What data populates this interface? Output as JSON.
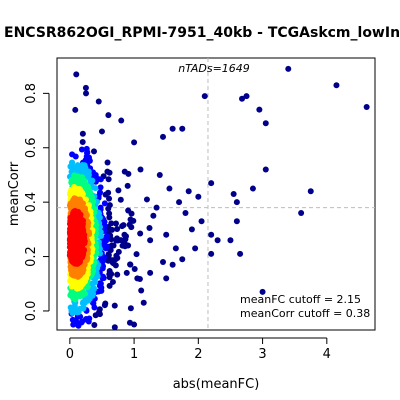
{
  "chart_data": {
    "type": "scatter",
    "title": "ENCSR862OGI_RPMI-7951_40kb - TCGAskcm_lowInf_high",
    "xlabel": "abs(meanFC)",
    "ylabel": "meanCorr",
    "xlim": [
      -0.2,
      4.75
    ],
    "ylim": [
      -0.07,
      0.93
    ],
    "xticks": [
      0,
      1,
      2,
      3,
      4
    ],
    "yticks": [
      0.0,
      0.2,
      0.4,
      0.6,
      0.8
    ],
    "grid": false,
    "n_annotation": "nTADs=1649",
    "cutoff_annotation": {
      "meanFC_text": "meanFC cutoff = 2.15",
      "meanCorr_text": "meanCorr cutoff = 0.38"
    },
    "cutoffs": {
      "meanFC": 2.15,
      "meanCorr": 0.38
    },
    "cutoff_line_color": "#bdbdbd",
    "point_color_sparse": "#00008b",
    "density_colormap": [
      "#00008b",
      "#0000ff",
      "#00bfff",
      "#00ff80",
      "#ffff00",
      "#ff8000",
      "#ff0000"
    ],
    "outlier_points": [
      {
        "x": 4.62,
        "y": 0.75
      },
      {
        "x": 4.15,
        "y": 0.83
      },
      {
        "x": 3.4,
        "y": 0.89
      },
      {
        "x": 3.75,
        "y": 0.44
      },
      {
        "x": 3.6,
        "y": 0.36
      },
      {
        "x": 3.05,
        "y": 0.52
      },
      {
        "x": 3.0,
        "y": 0.07
      },
      {
        "x": 3.05,
        "y": 0.69
      },
      {
        "x": 2.95,
        "y": 0.74
      },
      {
        "x": 2.75,
        "y": 0.79
      },
      {
        "x": 2.68,
        "y": 0.78
      },
      {
        "x": 2.85,
        "y": 0.45
      },
      {
        "x": 2.6,
        "y": 0.4
      },
      {
        "x": 2.55,
        "y": 0.43
      },
      {
        "x": 2.6,
        "y": 0.33
      },
      {
        "x": 2.5,
        "y": 0.26
      },
      {
        "x": 2.65,
        "y": 0.21
      },
      {
        "x": 2.3,
        "y": 0.26
      },
      {
        "x": 2.2,
        "y": 0.28
      },
      {
        "x": 2.1,
        "y": 0.79
      },
      {
        "x": 2.2,
        "y": 0.21
      },
      {
        "x": 2.2,
        "y": 0.47
      },
      {
        "x": 2.0,
        "y": 0.42
      },
      {
        "x": 1.85,
        "y": 0.44
      },
      {
        "x": 1.75,
        "y": 0.67
      },
      {
        "x": 1.6,
        "y": 0.67
      },
      {
        "x": 1.45,
        "y": 0.64
      },
      {
        "x": 1.2,
        "y": 0.41
      },
      {
        "x": 1.3,
        "y": 0.35
      },
      {
        "x": 1.5,
        "y": 0.28
      },
      {
        "x": 1.65,
        "y": 0.23
      },
      {
        "x": 1.75,
        "y": 0.19
      },
      {
        "x": 1.9,
        "y": 0.3
      },
      {
        "x": 2.05,
        "y": 0.33
      },
      {
        "x": 1.95,
        "y": 0.23
      },
      {
        "x": 1.55,
        "y": 0.45
      },
      {
        "x": 1.4,
        "y": 0.5
      },
      {
        "x": 1.1,
        "y": 0.52
      },
      {
        "x": 1.0,
        "y": 0.62
      },
      {
        "x": 1.05,
        "y": 0.12
      },
      {
        "x": 1.25,
        "y": 0.14
      },
      {
        "x": 1.5,
        "y": 0.12
      },
      {
        "x": 1.6,
        "y": 0.17
      },
      {
        "x": 1.15,
        "y": 0.03
      },
      {
        "x": 0.95,
        "y": 0.01
      },
      {
        "x": 1.0,
        "y": -0.05
      },
      {
        "x": 0.7,
        "y": -0.06
      },
      {
        "x": 0.85,
        "y": 0.28
      },
      {
        "x": 1.35,
        "y": 0.38
      },
      {
        "x": 1.8,
        "y": 0.36
      },
      {
        "x": 1.7,
        "y": 0.4
      },
      {
        "x": 1.45,
        "y": 0.18
      },
      {
        "x": 1.25,
        "y": 0.26
      },
      {
        "x": 0.8,
        "y": 0.7
      },
      {
        "x": 0.6,
        "y": 0.72
      },
      {
        "x": 0.45,
        "y": 0.77
      },
      {
        "x": 0.1,
        "y": 0.87
      },
      {
        "x": 0.25,
        "y": 0.82
      },
      {
        "x": 0.5,
        "y": 0.66
      },
      {
        "x": 0.9,
        "y": 0.46
      }
    ]
  }
}
